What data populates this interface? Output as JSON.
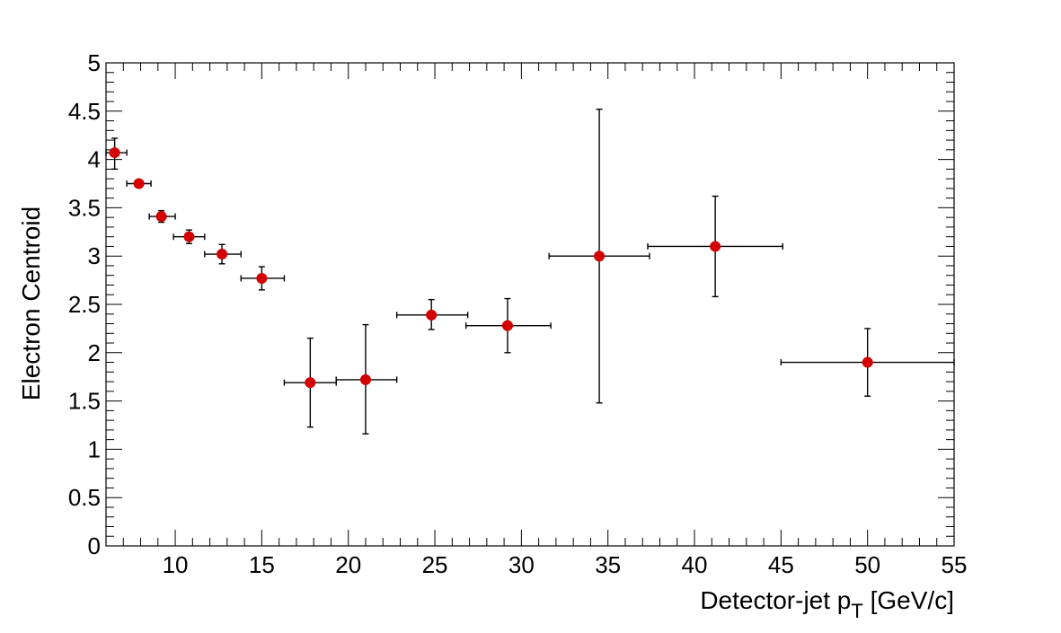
{
  "chart_data": {
    "type": "scatter",
    "title": "",
    "xlabel": "Detector-jet p",
    "xlabel_subscript": "T",
    "xlabel_unit": "[GeV/c]",
    "ylabel": "Electron Centroid",
    "xlim": [
      6,
      55
    ],
    "ylim": [
      0,
      5
    ],
    "grid": false,
    "x_ticks": [
      10,
      15,
      20,
      25,
      30,
      35,
      40,
      45,
      50,
      55
    ],
    "x_tick_labels": [
      "10",
      "15",
      "20",
      "25",
      "30",
      "35",
      "40",
      "45",
      "50",
      "55"
    ],
    "y_ticks": [
      0,
      0.5,
      1,
      1.5,
      2,
      2.5,
      3,
      3.5,
      4,
      4.5,
      5
    ],
    "y_tick_labels": [
      "0",
      "0.5",
      "1",
      "1.5",
      "2",
      "2.5",
      "3",
      "3.5",
      "4",
      "4.5",
      "5"
    ],
    "marker_color": "#d40000",
    "errorbar_color": "#000000",
    "series": [
      {
        "points": [
          {
            "x": 6.5,
            "y": 4.07,
            "xerr_low": 0.5,
            "xerr_high": 0.7,
            "yerr_low": 0.17,
            "yerr_high": 0.15
          },
          {
            "x": 7.9,
            "y": 3.75,
            "xerr_low": 0.7,
            "xerr_high": 0.7,
            "yerr_low": 0.03,
            "yerr_high": 0.03
          },
          {
            "x": 9.2,
            "y": 3.41,
            "xerr_low": 0.7,
            "xerr_high": 0.8,
            "yerr_low": 0.06,
            "yerr_high": 0.06
          },
          {
            "x": 10.8,
            "y": 3.2,
            "xerr_low": 0.9,
            "xerr_high": 0.9,
            "yerr_low": 0.07,
            "yerr_high": 0.07
          },
          {
            "x": 12.7,
            "y": 3.02,
            "xerr_low": 1.0,
            "xerr_high": 1.1,
            "yerr_low": 0.1,
            "yerr_high": 0.1
          },
          {
            "x": 15.0,
            "y": 2.77,
            "xerr_low": 1.2,
            "xerr_high": 1.3,
            "yerr_low": 0.12,
            "yerr_high": 0.12
          },
          {
            "x": 17.8,
            "y": 1.69,
            "xerr_low": 1.5,
            "xerr_high": 1.5,
            "yerr_low": 0.46,
            "yerr_high": 0.46
          },
          {
            "x": 21.0,
            "y": 1.72,
            "xerr_low": 1.7,
            "xerr_high": 1.8,
            "yerr_low": 0.56,
            "yerr_high": 0.57
          },
          {
            "x": 24.8,
            "y": 2.39,
            "xerr_low": 2.0,
            "xerr_high": 2.1,
            "yerr_low": 0.15,
            "yerr_high": 0.16
          },
          {
            "x": 29.2,
            "y": 2.28,
            "xerr_low": 2.4,
            "xerr_high": 2.5,
            "yerr_low": 0.28,
            "yerr_high": 0.28
          },
          {
            "x": 34.5,
            "y": 3.0,
            "xerr_low": 2.9,
            "xerr_high": 2.9,
            "yerr_low": 1.52,
            "yerr_high": 1.52
          },
          {
            "x": 41.2,
            "y": 3.1,
            "xerr_low": 3.9,
            "xerr_high": 3.9,
            "yerr_low": 0.52,
            "yerr_high": 0.52
          },
          {
            "x": 50.0,
            "y": 1.9,
            "xerr_low": 5.0,
            "xerr_high": 5.0,
            "yerr_low": 0.35,
            "yerr_high": 0.35
          }
        ]
      }
    ]
  }
}
